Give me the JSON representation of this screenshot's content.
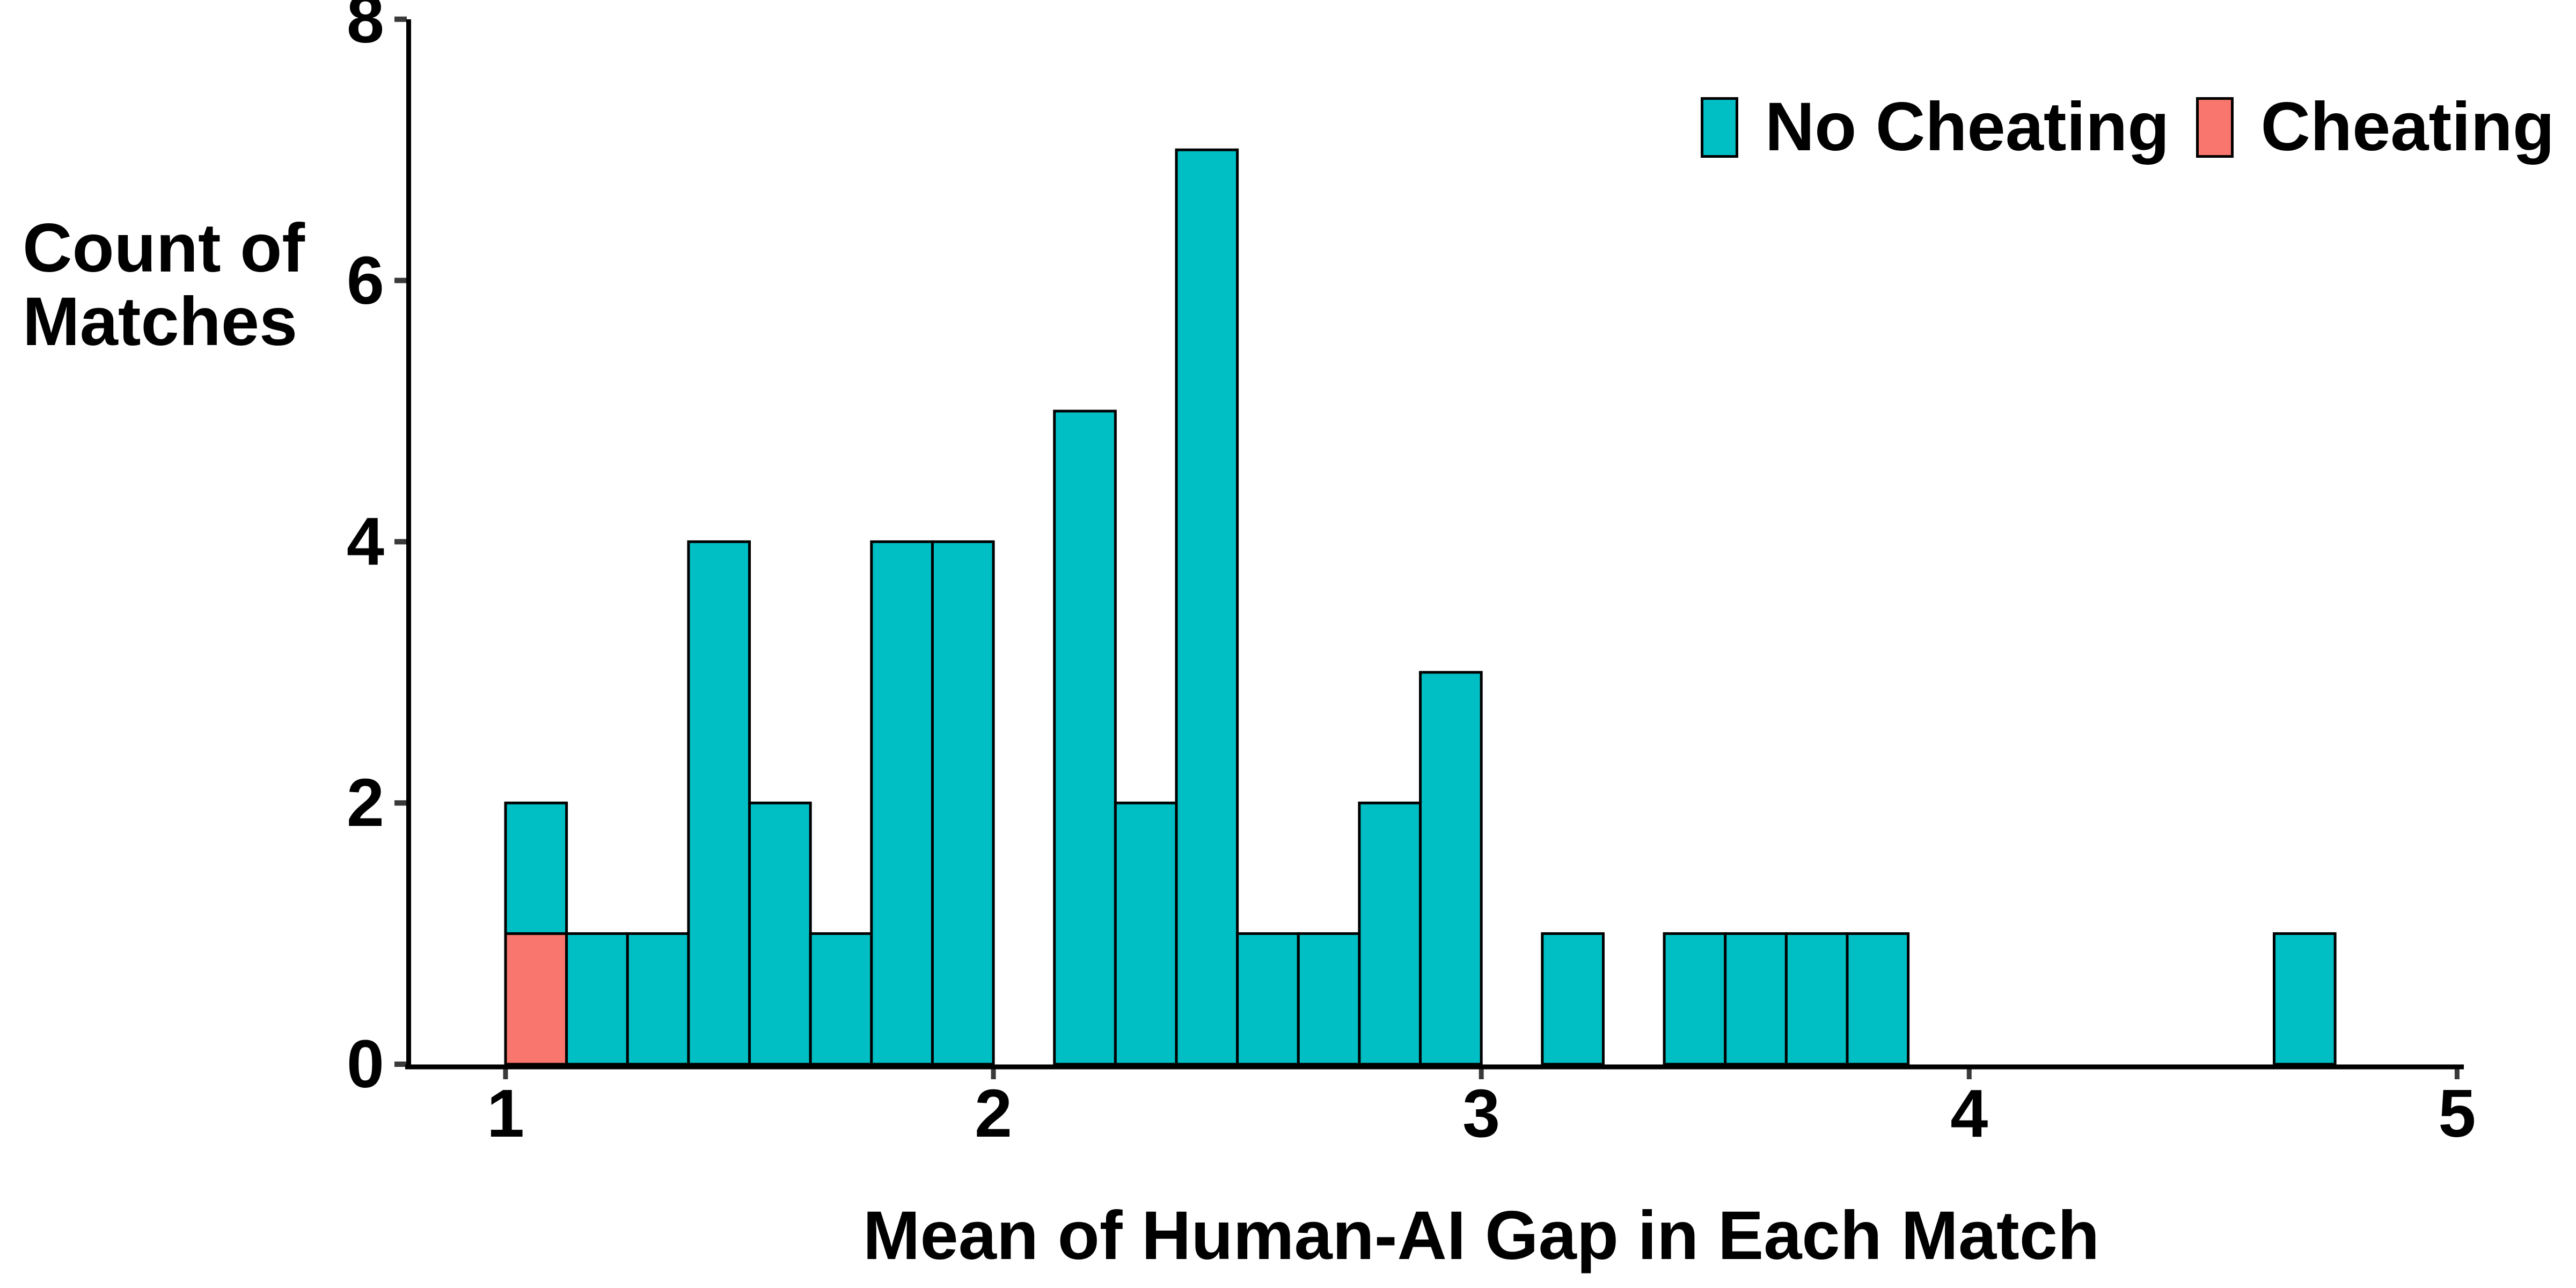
{
  "figure": {
    "background": "#FFFFFF",
    "y_title_line1": "Count of",
    "y_title_line2": "Matches"
  },
  "legend": {
    "items": [
      {
        "label": "No Cheating",
        "color": "#00BFC4"
      },
      {
        "label": "Cheating",
        "color": "#F8766D"
      }
    ]
  },
  "colors": {
    "no_cheating": "#00BFC4",
    "cheating": "#F8766D",
    "axis_line": "#000000",
    "tick_mark": "#3A3A3A",
    "bar_outline": "#000000",
    "text": "#000000"
  },
  "chart_data": {
    "type": "bar",
    "subtype": "stacked-histogram",
    "title": "",
    "xlabel": "Mean of Human-AI Gap in Each Match",
    "ylabel": "Count of Matches",
    "xlim": [
      1,
      5
    ],
    "ylim": [
      0,
      8
    ],
    "grid": "off",
    "legend_position": "top-right",
    "x_ticks": [
      1,
      2,
      3,
      4,
      5
    ],
    "x_tick_labels": [
      "1",
      "2",
      "3",
      "4",
      "5"
    ],
    "y_ticks": [
      0,
      2,
      4,
      6,
      8
    ],
    "y_tick_labels": [
      "0",
      "2",
      "4",
      "6",
      "8"
    ],
    "bin_start": 1.0,
    "bin_width": 0.125,
    "series": [
      {
        "name": "No Cheating",
        "values": [
          1,
          1,
          1,
          4,
          2,
          1,
          4,
          4,
          0,
          5,
          2,
          7,
          1,
          1,
          2,
          3,
          0,
          1,
          0,
          1,
          1,
          1,
          1,
          0,
          0,
          0,
          0,
          0,
          0,
          1
        ]
      },
      {
        "name": "Cheating",
        "values": [
          1,
          0,
          0,
          0,
          0,
          0,
          0,
          0,
          0,
          0,
          0,
          0,
          0,
          0,
          0,
          0,
          0,
          0,
          0,
          0,
          0,
          0,
          0,
          0,
          0,
          0,
          0,
          0,
          0,
          0
        ]
      }
    ]
  }
}
